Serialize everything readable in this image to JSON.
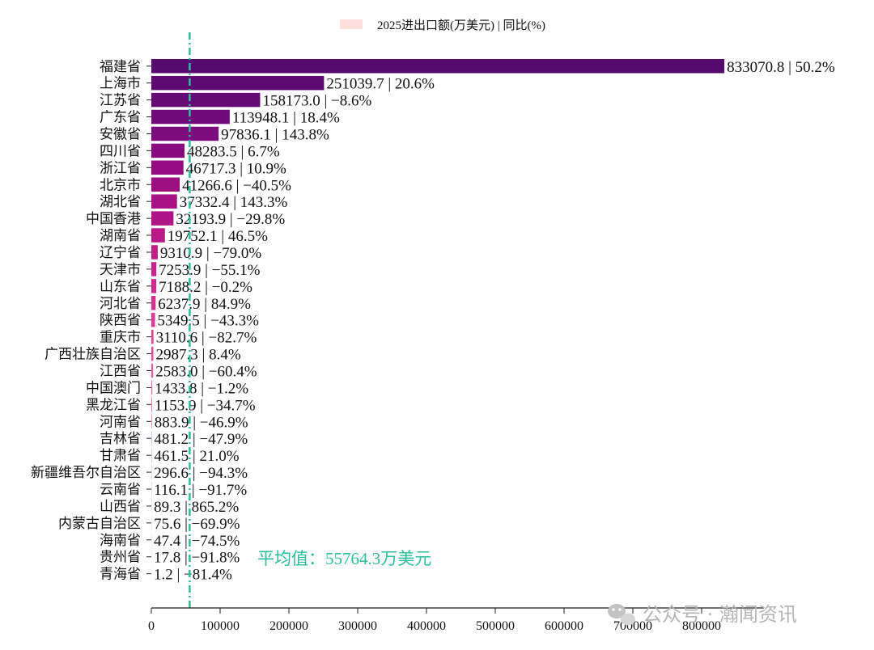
{
  "chart_data": {
    "type": "bar",
    "orientation": "horizontal",
    "legend_label": "2025进出口额(万美元) | 同比(%)",
    "legend_color": "#fbe0dc",
    "categories": [
      "福建省",
      "上海市",
      "江苏省",
      "广东省",
      "安徽省",
      "四川省",
      "浙江省",
      "北京市",
      "湖北省",
      "中国香港",
      "湖南省",
      "辽宁省",
      "天津市",
      "山东省",
      "河北省",
      "陕西省",
      "重庆市",
      "广西壮族自治区",
      "江西省",
      "中国澳门",
      "黑龙江省",
      "河南省",
      "吉林省",
      "甘肃省",
      "新疆维吾尔自治区",
      "云南省",
      "山西省",
      "内蒙古自治区",
      "海南省",
      "贵州省",
      "青海省"
    ],
    "values": [
      833070.8,
      251039.7,
      158173.0,
      113948.1,
      97836.1,
      48283.5,
      46717.3,
      41266.6,
      37332.4,
      32193.9,
      19752.1,
      9310.9,
      7253.9,
      7188.2,
      6237.9,
      5349.5,
      3110.6,
      2987.3,
      2583.0,
      1433.8,
      1153.9,
      883.9,
      481.2,
      461.5,
      296.6,
      116.1,
      89.3,
      75.6,
      47.4,
      17.8,
      1.2
    ],
    "value_labels": [
      "833070.8 | 50.2%",
      "251039.7 | 20.6%",
      "158173.0 | −8.6%",
      "113948.1 | 18.4%",
      "97836.1 | 143.8%",
      "48283.5 | 6.7%",
      "46717.3 | 10.9%",
      "41266.6 | −40.5%",
      "37332.4 | 143.3%",
      "32193.9 | −29.8%",
      "19752.1 | 46.5%",
      "9310.9 | −79.0%",
      "7253.9 | −55.1%",
      "7188.2 | −0.2%",
      "6237.9 | 84.9%",
      "5349.5 | −43.3%",
      "3110.6 | −82.7%",
      "2987.3 | 8.4%",
      "2583.0 | −60.4%",
      "1433.8 | −1.2%",
      "1153.9 | −34.7%",
      "883.9 | −46.9%",
      "481.2 | −47.9%",
      "461.5 | 21.0%",
      "296.6 | −94.3%",
      "116.1 | −91.7%",
      "89.3 | 865.2%",
      "75.6 | −69.9%",
      "47.4 | −74.5%",
      "17.8 | −91.8%",
      "1.2 | −81.4%"
    ],
    "bar_colors": [
      "#540a6e",
      "#5c0a72",
      "#660a76",
      "#700a7a",
      "#7c0b7c",
      "#870c7e",
      "#930d80",
      "#9e0f82",
      "#a81184",
      "#b11486",
      "#ba1887",
      "#c21c89",
      "#ca228c",
      "#d12990",
      "#d83094",
      "#dd3a99",
      "#e2449f",
      "#e64fa6",
      "#e95bad",
      "#ec68b4",
      "#ef76bc",
      "#f184c4",
      "#f392cb",
      "#f5a0d2",
      "#f7add9",
      "#f8badf",
      "#f9c6e5",
      "#fad2ea",
      "#fcdeef",
      "#fde9f4",
      "#fef3f8"
    ],
    "average_value": 55764.3,
    "average_label": "平均值：55764.3万美元",
    "average_color": "#2bbd9c",
    "xlim": [
      0,
      900000
    ],
    "xticks": [
      0,
      100000,
      200000,
      300000,
      400000,
      500000,
      600000,
      700000,
      800000
    ],
    "xtick_labels": [
      "0",
      "100000",
      "200000",
      "300000",
      "400000",
      "500000",
      "600000",
      "700000",
      "800000"
    ],
    "grid": false
  },
  "watermark": {
    "icon": "wechat-icon",
    "text": "公众号 · 瀚闻资讯"
  }
}
